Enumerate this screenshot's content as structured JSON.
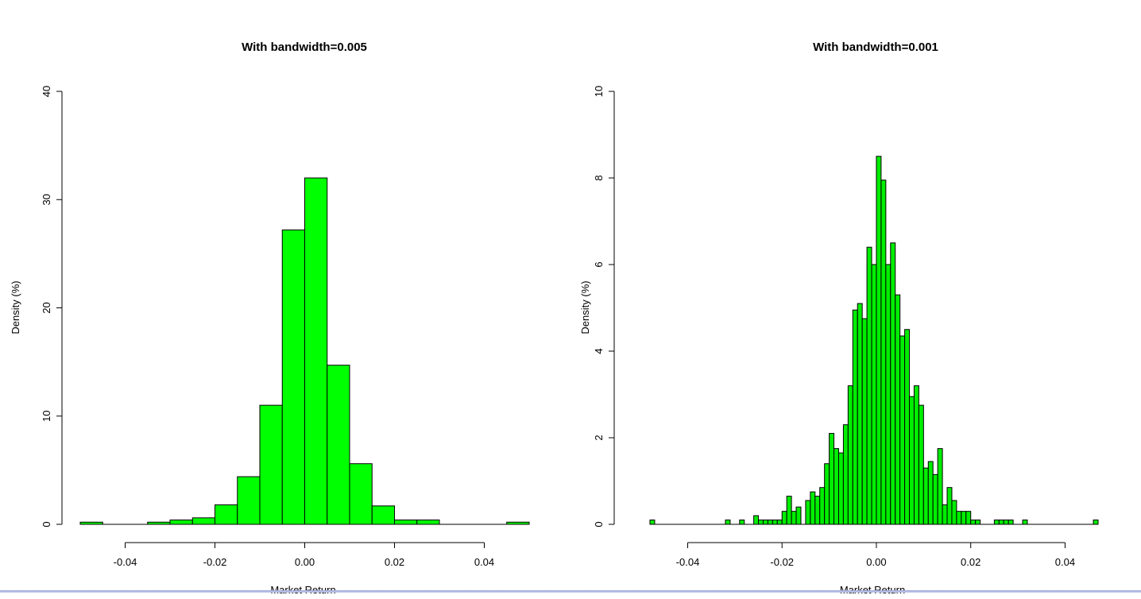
{
  "chart_data": [
    {
      "type": "bar",
      "title": "With bandwidth=0.005",
      "xlabel": "Market Return",
      "ylabel": "Density (%)",
      "xlim": [
        -0.05,
        0.05
      ],
      "ylim": [
        0,
        40
      ],
      "xticks": [
        -0.04,
        -0.02,
        0.0,
        0.02,
        0.04
      ],
      "xtick_labels": [
        "-0.04",
        "-0.02",
        "0.00",
        "0.02",
        "0.04"
      ],
      "yticks": [
        0,
        10,
        20,
        30,
        40
      ],
      "ytick_labels": [
        "0",
        "10",
        "20",
        "30",
        "40"
      ],
      "bar_color": "#00ff00",
      "edge_color": "#000000",
      "grid": false,
      "bin_width": 0.005,
      "bin_starts": [
        -0.05,
        -0.045,
        -0.04,
        -0.035,
        -0.03,
        -0.025,
        -0.02,
        -0.015,
        -0.01,
        -0.005,
        0.0,
        0.005,
        0.01,
        0.015,
        0.02,
        0.025,
        0.03,
        0.035,
        0.04,
        0.045
      ],
      "values": [
        0.2,
        0,
        0,
        0.2,
        0.4,
        0.6,
        1.8,
        4.4,
        11.0,
        27.2,
        32.0,
        14.7,
        5.6,
        1.7,
        0.4,
        0.4,
        0,
        0,
        0,
        0.2
      ]
    },
    {
      "type": "bar",
      "title": "With bandwidth=0.001",
      "xlabel": "Market Return",
      "ylabel": "Density (%)",
      "xlim": [
        -0.048,
        0.047
      ],
      "ylim": [
        0,
        10
      ],
      "xticks": [
        -0.04,
        -0.02,
        0.0,
        0.02,
        0.04
      ],
      "xtick_labels": [
        "-0.04",
        "-0.02",
        "0.00",
        "0.02",
        "0.04"
      ],
      "yticks": [
        0,
        2,
        4,
        6,
        8,
        10
      ],
      "ytick_labels": [
        "0",
        "2",
        "4",
        "6",
        "8",
        "10"
      ],
      "bar_color": "#00ee00",
      "edge_color": "#000000",
      "grid": false,
      "bin_width": 0.001,
      "bin_starts": [
        -0.048,
        -0.047,
        -0.046,
        -0.045,
        -0.044,
        -0.043,
        -0.042,
        -0.041,
        -0.04,
        -0.039,
        -0.038,
        -0.037,
        -0.036,
        -0.035,
        -0.034,
        -0.033,
        -0.032,
        -0.031,
        -0.03,
        -0.029,
        -0.028,
        -0.027,
        -0.026,
        -0.025,
        -0.024,
        -0.023,
        -0.022,
        -0.021,
        -0.02,
        -0.019,
        -0.018,
        -0.017,
        -0.016,
        -0.015,
        -0.014,
        -0.013,
        -0.012,
        -0.011,
        -0.01,
        -0.009,
        -0.008,
        -0.007,
        -0.006,
        -0.005,
        -0.004,
        -0.003,
        -0.002,
        -0.001,
        0.0,
        0.001,
        0.002,
        0.003,
        0.004,
        0.005,
        0.006,
        0.007,
        0.008,
        0.009,
        0.01,
        0.011,
        0.012,
        0.013,
        0.014,
        0.015,
        0.016,
        0.017,
        0.018,
        0.019,
        0.02,
        0.021,
        0.022,
        0.023,
        0.024,
        0.025,
        0.026,
        0.027,
        0.028,
        0.029,
        0.03,
        0.031,
        0.032,
        0.033,
        0.034,
        0.035,
        0.036,
        0.037,
        0.038,
        0.039,
        0.04,
        0.041,
        0.042,
        0.043,
        0.044,
        0.045,
        0.046
      ],
      "values": [
        0.1,
        0,
        0,
        0,
        0,
        0,
        0,
        0,
        0,
        0,
        0,
        0,
        0,
        0,
        0,
        0,
        0.1,
        0,
        0,
        0.1,
        0,
        0,
        0.2,
        0.1,
        0.1,
        0.1,
        0.1,
        0.1,
        0.3,
        0.65,
        0.3,
        0.4,
        0,
        0.55,
        0.75,
        0.65,
        0.85,
        1.4,
        2.1,
        1.75,
        1.65,
        2.3,
        3.2,
        4.95,
        5.1,
        4.75,
        6.4,
        6.0,
        8.5,
        7.95,
        6.0,
        6.5,
        5.3,
        4.35,
        4.5,
        2.95,
        3.2,
        2.75,
        1.3,
        1.45,
        1.15,
        1.75,
        0.45,
        0.85,
        0.55,
        0.3,
        0.3,
        0.3,
        0.1,
        0.1,
        0,
        0,
        0,
        0.1,
        0.1,
        0.1,
        0.1,
        0,
        0,
        0.1,
        0,
        0,
        0,
        0,
        0,
        0,
        0,
        0,
        0,
        0,
        0,
        0,
        0,
        0,
        0.1
      ]
    }
  ]
}
